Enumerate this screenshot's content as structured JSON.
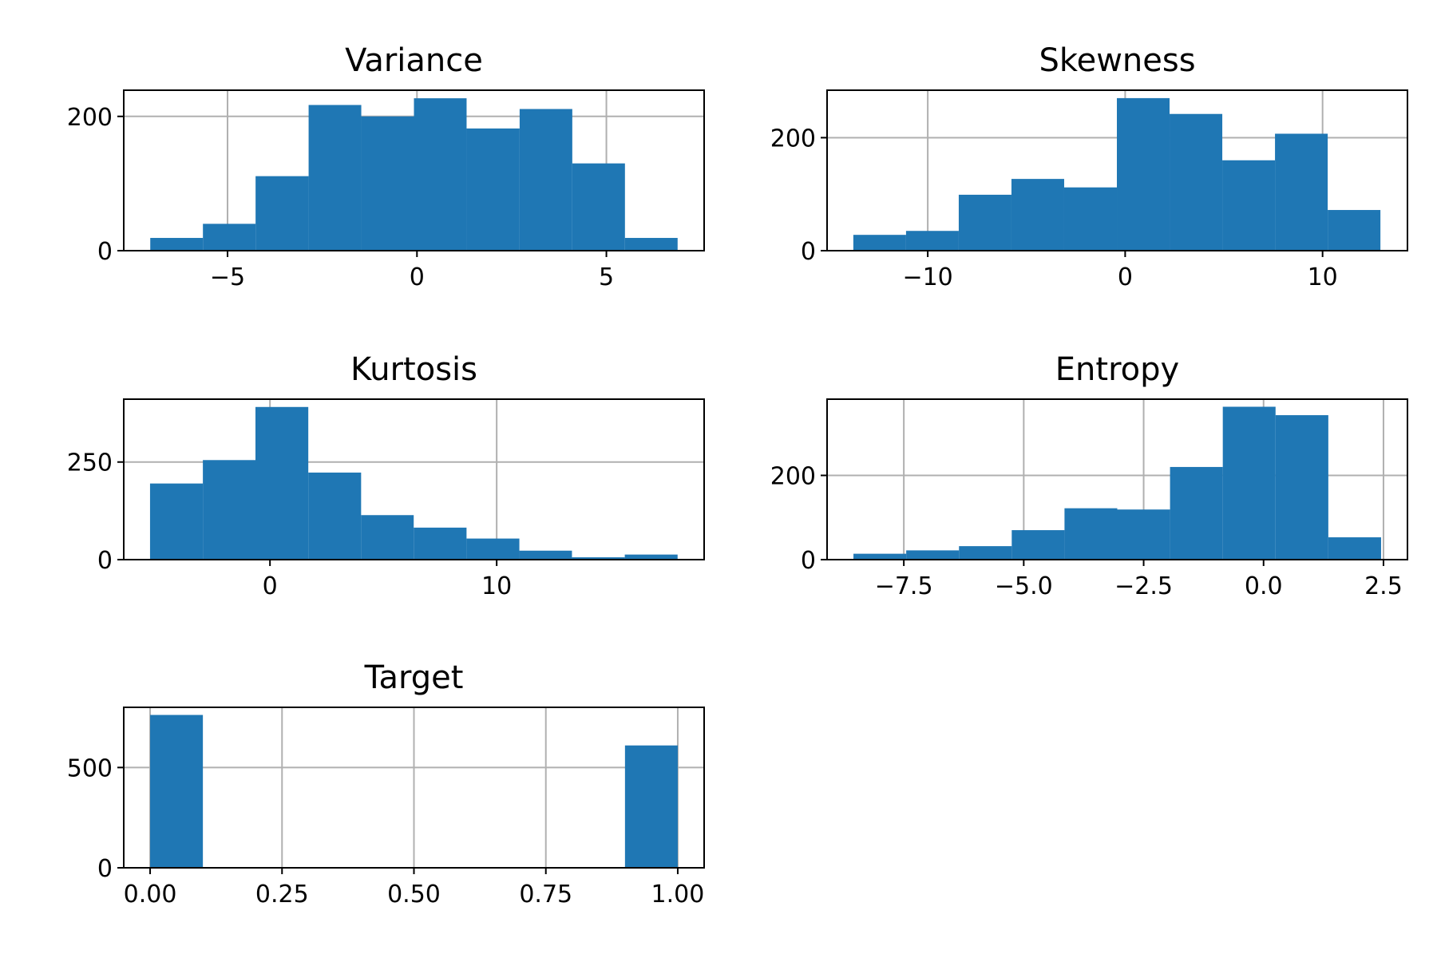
{
  "chart_data": [
    {
      "type": "bar",
      "title": "Variance",
      "color": "#1f77b4",
      "bin_edges": [
        -7.04,
        -5.65,
        -4.26,
        -2.86,
        -1.47,
        -0.08,
        1.31,
        2.71,
        4.1,
        5.49,
        6.88
      ],
      "counts": [
        19,
        40,
        111,
        217,
        200,
        227,
        182,
        211,
        130,
        19
      ],
      "xlim": [
        -7.74,
        7.58
      ],
      "ylim": [
        0,
        239
      ],
      "xticks": [
        -5,
        0,
        5
      ],
      "xtick_labels": [
        "−5",
        "0",
        "5"
      ],
      "yticks": [
        0,
        200
      ],
      "ytick_labels": [
        "0",
        "200"
      ],
      "grid": true
    },
    {
      "type": "bar",
      "title": "Skewness",
      "color": "#1f77b4",
      "bin_edges": [
        -13.77,
        -11.1,
        -8.43,
        -5.76,
        -3.09,
        -0.42,
        2.25,
        4.92,
        7.59,
        10.26,
        12.93
      ],
      "counts": [
        28,
        35,
        99,
        127,
        112,
        270,
        242,
        160,
        207,
        72
      ],
      "xlim": [
        -15.1,
        14.3
      ],
      "ylim": [
        0,
        284
      ],
      "xticks": [
        -10,
        0,
        10
      ],
      "xtick_labels": [
        "−10",
        "0",
        "10"
      ],
      "yticks": [
        0,
        200
      ],
      "ytick_labels": [
        "0",
        "200"
      ],
      "grid": true
    },
    {
      "type": "bar",
      "title": "Kurtosis",
      "color": "#1f77b4",
      "bin_edges": [
        -5.29,
        -2.96,
        -0.64,
        1.69,
        4.02,
        6.34,
        8.67,
        11.0,
        13.32,
        15.65,
        17.98
      ],
      "counts": [
        195,
        255,
        391,
        223,
        114,
        82,
        54,
        23,
        6,
        13
      ],
      "xlim": [
        -6.45,
        19.15
      ],
      "ylim": [
        0,
        411
      ],
      "xticks": [
        0,
        10
      ],
      "xtick_labels": [
        "0",
        "10"
      ],
      "yticks": [
        0,
        250
      ],
      "ytick_labels": [
        "0",
        "250"
      ],
      "grid": true
    },
    {
      "type": "bar",
      "title": "Entropy",
      "color": "#1f77b4",
      "bin_edges": [
        -8.55,
        -7.45,
        -6.35,
        -5.25,
        -4.15,
        -3.05,
        -1.95,
        -0.85,
        0.25,
        1.35,
        2.45
      ],
      "counts": [
        14,
        22,
        32,
        70,
        122,
        119,
        220,
        363,
        343,
        53
      ],
      "xlim": [
        -9.1,
        3.0
      ],
      "ylim": [
        0,
        381
      ],
      "xticks": [
        -7.5,
        -5.0,
        -2.5,
        0.0,
        2.5
      ],
      "xtick_labels": [
        "−7.5",
        "−5.0",
        "−2.5",
        "0.0",
        "2.5"
      ],
      "yticks": [
        0,
        200
      ],
      "ytick_labels": [
        "0",
        "200"
      ],
      "grid": true
    },
    {
      "type": "bar",
      "title": "Target",
      "color": "#1f77b4",
      "bin_edges": [
        0.0,
        0.1,
        0.2,
        0.3,
        0.4,
        0.5,
        0.6,
        0.7,
        0.8,
        0.9,
        1.0
      ],
      "counts": [
        762,
        0,
        0,
        0,
        0,
        0,
        0,
        0,
        0,
        610
      ],
      "xlim": [
        -0.05,
        1.05
      ],
      "ylim": [
        0,
        800
      ],
      "xticks": [
        0.0,
        0.25,
        0.5,
        0.75,
        1.0
      ],
      "xtick_labels": [
        "0.00",
        "0.25",
        "0.50",
        "0.75",
        "1.00"
      ],
      "yticks": [
        0,
        500
      ],
      "ytick_labels": [
        "0",
        "500"
      ],
      "grid": true
    }
  ]
}
